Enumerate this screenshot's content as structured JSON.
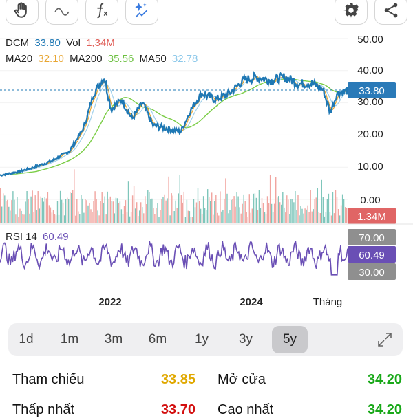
{
  "toolbar": {
    "buttons": [
      {
        "icon": "hand-icon"
      },
      {
        "icon": "wave-icon"
      },
      {
        "icon": "function-icon"
      },
      {
        "icon": "sparkle-icon"
      },
      {
        "icon": "gear-icon"
      },
      {
        "icon": "share-icon"
      }
    ]
  },
  "legend": {
    "symbol": "DCM",
    "price": "33.80",
    "vol_label": "Vol",
    "vol": "1,34M",
    "ma20_label": "MA20",
    "ma20": "32.10",
    "ma200_label": "MA200",
    "ma200": "35.56",
    "ma50_label": "MA50",
    "ma50": "32.78"
  },
  "rsi": {
    "label": "RSI 14",
    "value": "60.49"
  },
  "price_axis": {
    "ticks": [
      "50.00",
      "40.00",
      "30.00",
      "20.00",
      "10.00",
      "0.00"
    ]
  },
  "price_pill": "33.80",
  "volume_pill": "1.34M",
  "rsi_axis": {
    "upper": "70.00",
    "lower": "30.00",
    "current": "60.49"
  },
  "x_axis": {
    "labels": [
      "2022",
      "2024",
      "Tháng"
    ]
  },
  "periods": {
    "items": [
      {
        "label": "1d"
      },
      {
        "label": "1m"
      },
      {
        "label": "3m"
      },
      {
        "label": "6m"
      },
      {
        "label": "1y"
      },
      {
        "label": "3y"
      },
      {
        "label": "5y"
      }
    ],
    "active": "5y"
  },
  "stats": {
    "ref_label": "Tham chiếu",
    "ref_value": "33.85",
    "open_label": "Mở cửa",
    "open_value": "34.20",
    "low_label": "Thấp nhất",
    "low_value": "33.70",
    "high_label": "Cao nhất",
    "high_value": "34.20"
  },
  "colors": {
    "price": "#1f78b4",
    "ma20": "#e8a530",
    "ma200": "#7acd45",
    "ma50": "#9fd0ec",
    "vol_up": "#7fc6bb",
    "vol_down": "#f1a5a0",
    "rsi": "#6a4fb5",
    "ref": "#e0a800",
    "green": "#18a818",
    "red": "#d31010"
  },
  "chart_data": {
    "type": "line",
    "x_labels": [
      "2022",
      "2024",
      "Tháng"
    ],
    "price_series": [
      {
        "t": 0,
        "v": 7.5
      },
      {
        "t": 0.05,
        "v": 8.5
      },
      {
        "t": 0.1,
        "v": 10
      },
      {
        "t": 0.15,
        "v": 12
      },
      {
        "t": 0.2,
        "v": 15
      },
      {
        "t": 0.24,
        "v": 22
      },
      {
        "t": 0.27,
        "v": 33
      },
      {
        "t": 0.3,
        "v": 38
      },
      {
        "t": 0.32,
        "v": 28
      },
      {
        "t": 0.35,
        "v": 31
      },
      {
        "t": 0.38,
        "v": 25
      },
      {
        "t": 0.41,
        "v": 30
      },
      {
        "t": 0.44,
        "v": 23
      },
      {
        "t": 0.48,
        "v": 22
      },
      {
        "t": 0.52,
        "v": 21
      },
      {
        "t": 0.55,
        "v": 28
      },
      {
        "t": 0.58,
        "v": 33
      },
      {
        "t": 0.62,
        "v": 31
      },
      {
        "t": 0.66,
        "v": 33
      },
      {
        "t": 0.7,
        "v": 37
      },
      {
        "t": 0.74,
        "v": 38
      },
      {
        "t": 0.78,
        "v": 37
      },
      {
        "t": 0.82,
        "v": 38
      },
      {
        "t": 0.86,
        "v": 36
      },
      {
        "t": 0.9,
        "v": 36
      },
      {
        "t": 0.93,
        "v": 34
      },
      {
        "t": 0.95,
        "v": 27
      },
      {
        "t": 0.97,
        "v": 33
      },
      {
        "t": 1,
        "v": 33.8
      }
    ],
    "y_range": [
      0,
      52
    ]
  }
}
